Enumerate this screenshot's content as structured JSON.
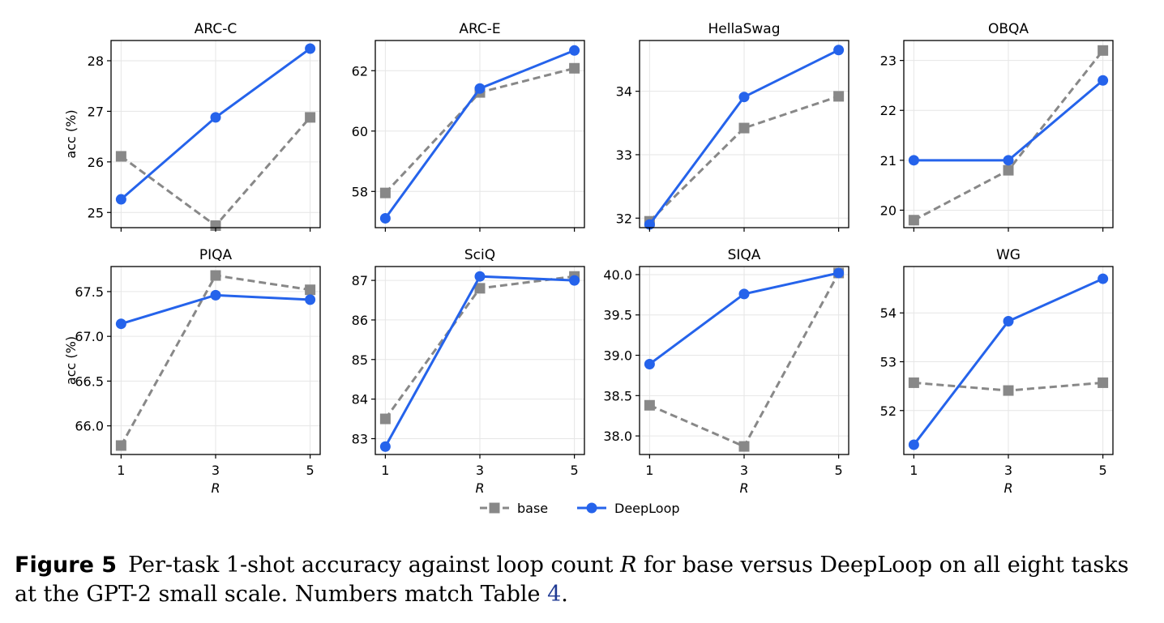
{
  "chart_data": {
    "type": "line",
    "x": [
      1,
      3,
      5
    ],
    "xlabel": "R",
    "ylabel": "acc (%)",
    "legend": {
      "placement": "bottom-center",
      "items": [
        {
          "name": "base",
          "style": "dashed",
          "marker": "square",
          "color": "#888888"
        },
        {
          "name": "DeepLoop",
          "style": "solid",
          "marker": "circle",
          "color": "#2563EB"
        }
      ]
    },
    "grid": true,
    "panels": [
      {
        "title": "ARC-C",
        "ylim": [
          24.7,
          28.4
        ],
        "yticks": [
          25,
          26,
          27,
          28
        ],
        "series": [
          {
            "name": "base",
            "values": [
              26.11,
              24.74,
              26.88
            ]
          },
          {
            "name": "DeepLoop",
            "values": [
              25.26,
              26.88,
              28.24
            ]
          }
        ]
      },
      {
        "title": "ARC-E",
        "ylim": [
          56.8,
          63.0
        ],
        "yticks": [
          58,
          60,
          62
        ],
        "series": [
          {
            "name": "base",
            "values": [
              57.95,
              61.28,
              62.08
            ]
          },
          {
            "name": "DeepLoop",
            "values": [
              57.11,
              61.41,
              62.67
            ]
          }
        ]
      },
      {
        "title": "HellaSwag",
        "ylim": [
          31.85,
          34.8
        ],
        "yticks": [
          32,
          33,
          34
        ],
        "series": [
          {
            "name": "base",
            "values": [
              31.95,
              33.42,
              33.92
            ]
          },
          {
            "name": "DeepLoop",
            "values": [
              31.9,
              33.91,
              34.65
            ]
          }
        ]
      },
      {
        "title": "OBQA",
        "ylim": [
          19.65,
          23.4
        ],
        "yticks": [
          20,
          21,
          22,
          23
        ],
        "series": [
          {
            "name": "base",
            "values": [
              19.8,
              20.8,
              23.2
            ]
          },
          {
            "name": "DeepLoop",
            "values": [
              21.0,
              21.0,
              22.6
            ]
          }
        ]
      },
      {
        "title": "PIQA",
        "ylim": [
          65.68,
          67.78
        ],
        "yticks": [
          66.0,
          66.5,
          67.0,
          67.5
        ],
        "series": [
          {
            "name": "base",
            "values": [
              65.78,
              67.68,
              67.52
            ]
          },
          {
            "name": "DeepLoop",
            "values": [
              67.14,
              67.46,
              67.41
            ]
          }
        ]
      },
      {
        "title": "SciQ",
        "ylim": [
          82.6,
          87.35
        ],
        "yticks": [
          83,
          84,
          85,
          86,
          87
        ],
        "series": [
          {
            "name": "base",
            "values": [
              83.5,
              86.8,
              87.1
            ]
          },
          {
            "name": "DeepLoop",
            "values": [
              82.8,
              87.1,
              87.0
            ]
          }
        ]
      },
      {
        "title": "SIQA",
        "ylim": [
          37.77,
          40.1
        ],
        "yticks": [
          38.0,
          38.5,
          39.0,
          39.5,
          40.0
        ],
        "series": [
          {
            "name": "base",
            "values": [
              38.38,
              37.87,
              40.02
            ]
          },
          {
            "name": "DeepLoop",
            "values": [
              38.89,
              39.76,
              40.02
            ]
          }
        ]
      },
      {
        "title": "WG",
        "ylim": [
          51.1,
          54.95
        ],
        "yticks": [
          52,
          53,
          54
        ],
        "series": [
          {
            "name": "base",
            "values": [
              52.57,
              52.41,
              52.57
            ]
          },
          {
            "name": "DeepLoop",
            "values": [
              51.3,
              53.83,
              54.7
            ]
          }
        ]
      }
    ]
  },
  "caption": {
    "label": "Figure 5",
    "text_before_var": "Per-task 1-shot accuracy against loop count ",
    "var": "R",
    "text_after_var": " for base versus DeepLoop on all eight tasks at the GPT-2 small scale. Numbers match Table ",
    "ref": "4",
    "end": "."
  }
}
